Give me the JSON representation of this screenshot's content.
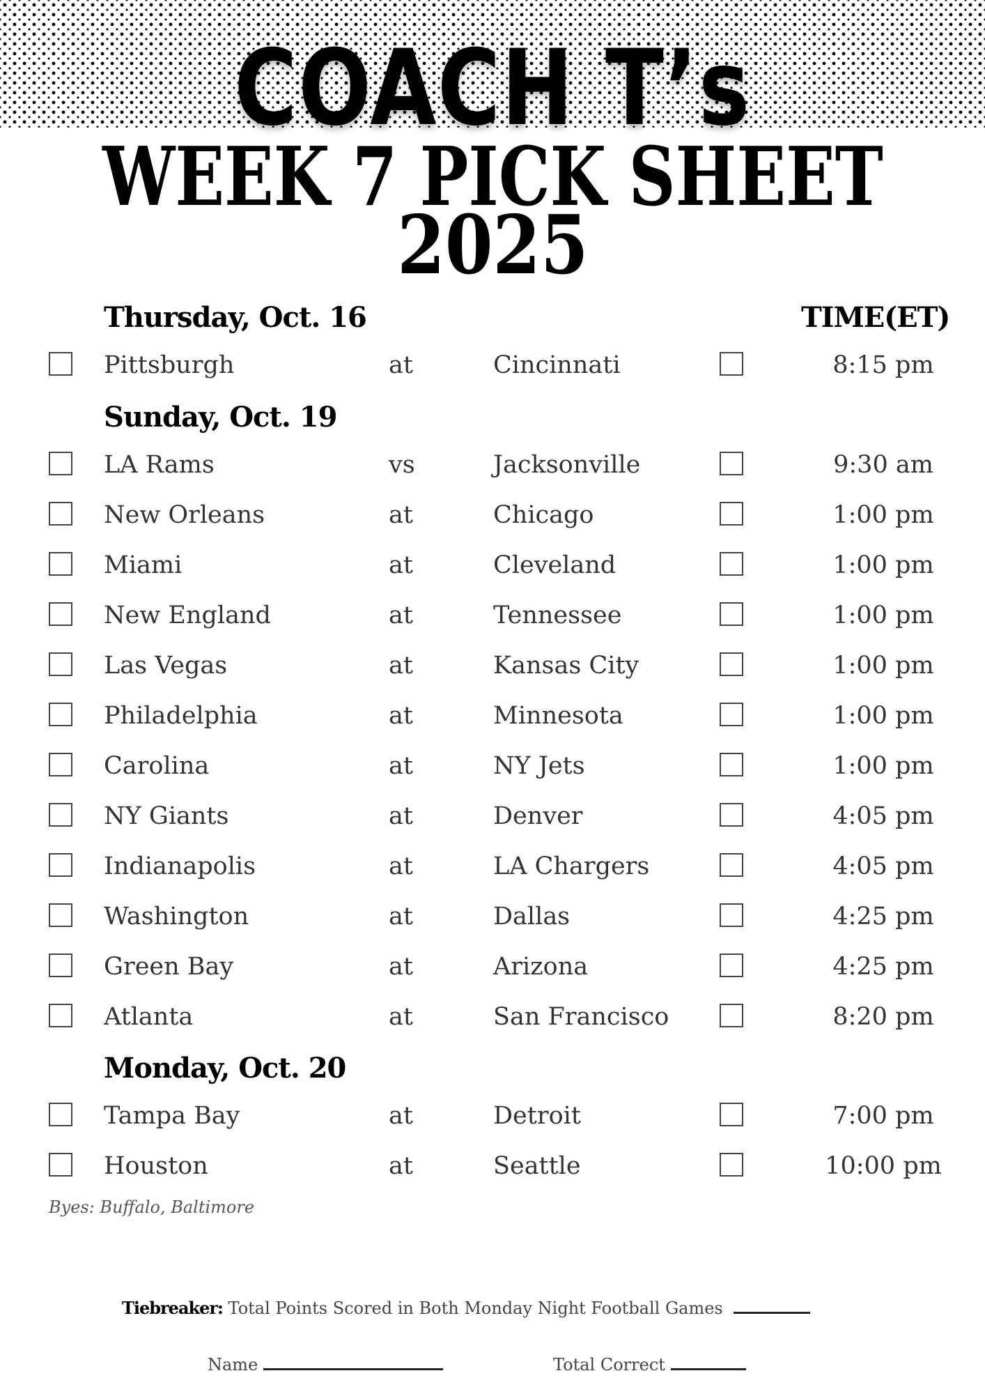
{
  "header": {
    "brand": "COACH T’s",
    "title": "WEEK 7 PICK SHEET",
    "year": "2025"
  },
  "time_header": "TIME(ET)",
  "days": [
    {
      "label": "Thursday, Oct. 16",
      "games": [
        {
          "away": "Pittsburgh",
          "sep": "at",
          "home": "Cincinnati",
          "time": "8:15 pm"
        }
      ]
    },
    {
      "label": "Sunday, Oct. 19",
      "games": [
        {
          "away": "LA Rams",
          "sep": "vs",
          "home": "Jacksonville",
          "time": "9:30 am"
        },
        {
          "away": "New Orleans",
          "sep": "at",
          "home": "Chicago",
          "time": "1:00 pm"
        },
        {
          "away": "Miami",
          "sep": "at",
          "home": "Cleveland",
          "time": "1:00 pm"
        },
        {
          "away": "New England",
          "sep": "at",
          "home": "Tennessee",
          "time": "1:00 pm"
        },
        {
          "away": "Las Vegas",
          "sep": "at",
          "home": "Kansas City",
          "time": "1:00 pm"
        },
        {
          "away": "Philadelphia",
          "sep": "at",
          "home": "Minnesota",
          "time": "1:00 pm"
        },
        {
          "away": "Carolina",
          "sep": "at",
          "home": "NY Jets",
          "time": "1:00 pm"
        },
        {
          "away": "NY Giants",
          "sep": "at",
          "home": "Denver",
          "time": "4:05 pm"
        },
        {
          "away": "Indianapolis",
          "sep": "at",
          "home": "LA Chargers",
          "time": "4:05 pm"
        },
        {
          "away": "Washington",
          "sep": "at",
          "home": "Dallas",
          "time": "4:25 pm"
        },
        {
          "away": "Green Bay",
          "sep": "at",
          "home": "Arizona",
          "time": "4:25 pm"
        },
        {
          "away": "Atlanta",
          "sep": "at",
          "home": "San Francisco",
          "time": "8:20 pm"
        }
      ]
    },
    {
      "label": "Monday, Oct. 20",
      "games": [
        {
          "away": "Tampa Bay",
          "sep": "at",
          "home": "Detroit",
          "time": "7:00 pm"
        },
        {
          "away": "Houston",
          "sep": "at",
          "home": "Seattle",
          "time": "10:00 pm"
        }
      ]
    }
  ],
  "byes": "Byes: Buffalo, Baltimore",
  "tiebreaker": {
    "label": "Tiebreaker:",
    "text": "Total Points Scored in Both Monday Night Football Games"
  },
  "footer": {
    "name_label": "Name",
    "total_label": "Total Correct"
  }
}
